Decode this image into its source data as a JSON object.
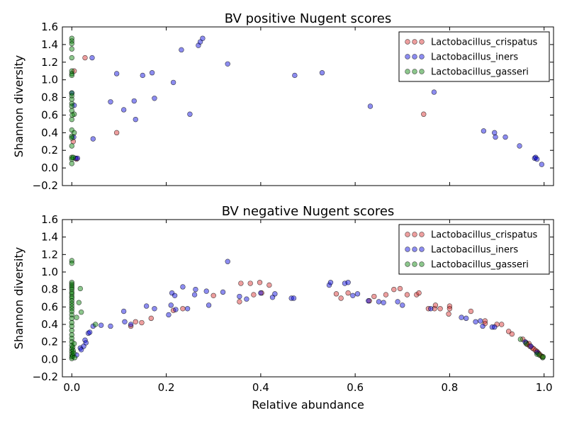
{
  "chart_data": [
    {
      "type": "scatter",
      "title": "BV positive Nugent scores",
      "xlabel": "",
      "ylabel": "Shannon diversity",
      "xlim": [
        -0.02,
        1.02
      ],
      "ylim": [
        -0.2,
        1.6
      ],
      "x_ticks": [],
      "y_ticks": [
        "−0.2",
        "0.0",
        "0.2",
        "0.4",
        "0.6",
        "0.8",
        "1.0",
        "1.2",
        "1.4",
        "1.6"
      ],
      "legend_position": "top-right",
      "series": [
        {
          "name": "Lactobacillus_crispatus",
          "color": "#d62728",
          "points": [
            [
              0.028,
              1.25
            ],
            [
              0.095,
              0.4
            ],
            [
              0.745,
              0.61
            ],
            [
              0.01,
              0.1
            ],
            [
              0.005,
              1.1
            ],
            [
              0.003,
              0.3
            ]
          ]
        },
        {
          "name": "Lactobacillus_iners",
          "color": "#0000dd",
          "points": [
            [
              0.043,
              1.25
            ],
            [
              0.045,
              0.33
            ],
            [
              0.082,
              0.75
            ],
            [
              0.095,
              1.07
            ],
            [
              0.11,
              0.66
            ],
            [
              0.132,
              0.76
            ],
            [
              0.135,
              0.55
            ],
            [
              0.15,
              1.05
            ],
            [
              0.17,
              1.08
            ],
            [
              0.175,
              0.79
            ],
            [
              0.215,
              0.97
            ],
            [
              0.232,
              1.34
            ],
            [
              0.25,
              0.61
            ],
            [
              0.268,
              1.39
            ],
            [
              0.272,
              1.43
            ],
            [
              0.277,
              1.47
            ],
            [
              0.33,
              1.18
            ],
            [
              0.472,
              1.05
            ],
            [
              0.53,
              1.08
            ],
            [
              0.632,
              0.7
            ],
            [
              0.767,
              0.86
            ],
            [
              0.872,
              0.42
            ],
            [
              0.895,
              0.4
            ],
            [
              0.897,
              0.35
            ],
            [
              0.918,
              0.35
            ],
            [
              0.948,
              0.25
            ],
            [
              0.98,
              0.11
            ],
            [
              0.982,
              0.12
            ],
            [
              0.985,
              0.1
            ],
            [
              0.995,
              0.04
            ],
            [
              0.0,
              0.85
            ],
            [
              0.005,
              0.71
            ],
            [
              0.008,
              0.11
            ],
            [
              0.012,
              0.11
            ],
            [
              0.004,
              0.35
            ]
          ]
        },
        {
          "name": "Lactobacillus_gasseri",
          "color": "#008000",
          "points": [
            [
              0.0,
              1.47
            ],
            [
              0.0,
              1.44
            ],
            [
              0.0,
              1.41
            ],
            [
              0.0,
              1.35
            ],
            [
              0.0,
              1.25
            ],
            [
              0.0,
              1.1
            ],
            [
              0.0,
              1.07
            ],
            [
              0.0,
              1.05
            ],
            [
              0.0,
              0.85
            ],
            [
              0.0,
              0.82
            ],
            [
              0.0,
              0.78
            ],
            [
              0.0,
              0.73
            ],
            [
              0.0,
              0.7
            ],
            [
              0.0,
              0.65
            ],
            [
              0.0,
              0.55
            ],
            [
              0.0,
              0.43
            ],
            [
              0.0,
              0.36
            ],
            [
              0.0,
              0.34
            ],
            [
              0.0,
              0.25
            ],
            [
              0.0,
              0.12
            ],
            [
              0.0,
              0.1
            ],
            [
              0.0,
              0.05
            ],
            [
              0.005,
              0.61
            ],
            [
              0.005,
              0.4
            ],
            [
              0.003,
              0.12
            ],
            [
              0.001,
              0.6
            ]
          ]
        }
      ]
    },
    {
      "type": "scatter",
      "title": "BV negative Nugent scores",
      "xlabel": "Relative abundance",
      "ylabel": "Shannon diversity",
      "xlim": [
        -0.02,
        1.02
      ],
      "ylim": [
        -0.2,
        1.6
      ],
      "x_ticks": [
        "0.0",
        "0.2",
        "0.4",
        "0.6",
        "0.8",
        "1.0"
      ],
      "y_ticks": [
        "−0.2",
        "0.0",
        "0.2",
        "0.4",
        "0.6",
        "0.8",
        "1.0",
        "1.2",
        "1.4",
        "1.6"
      ],
      "legend_position": "top-right",
      "series": [
        {
          "name": "Lactobacillus_crispatus",
          "color": "#d62728",
          "points": [
            [
              0.125,
              0.38
            ],
            [
              0.135,
              0.43
            ],
            [
              0.148,
              0.42
            ],
            [
              0.168,
              0.47
            ],
            [
              0.215,
              0.56
            ],
            [
              0.235,
              0.58
            ],
            [
              0.3,
              0.73
            ],
            [
              0.355,
              0.66
            ],
            [
              0.358,
              0.87
            ],
            [
              0.378,
              0.87
            ],
            [
              0.385,
              0.74
            ],
            [
              0.398,
              0.88
            ],
            [
              0.402,
              0.76
            ],
            [
              0.418,
              0.85
            ],
            [
              0.56,
              0.75
            ],
            [
              0.57,
              0.7
            ],
            [
              0.585,
              0.76
            ],
            [
              0.63,
              0.67
            ],
            [
              0.64,
              0.72
            ],
            [
              0.665,
              0.74
            ],
            [
              0.682,
              0.8
            ],
            [
              0.695,
              0.81
            ],
            [
              0.71,
              0.74
            ],
            [
              0.73,
              0.74
            ],
            [
              0.735,
              0.76
            ],
            [
              0.755,
              0.58
            ],
            [
              0.768,
              0.58
            ],
            [
              0.77,
              0.62
            ],
            [
              0.78,
              0.58
            ],
            [
              0.8,
              0.61
            ],
            [
              0.8,
              0.58
            ],
            [
              0.798,
              0.52
            ],
            [
              0.845,
              0.55
            ],
            [
              0.875,
              0.44
            ],
            [
              0.875,
              0.41
            ],
            [
              0.9,
              0.4
            ],
            [
              0.91,
              0.4
            ],
            [
              0.925,
              0.32
            ],
            [
              0.932,
              0.29
            ],
            [
              0.955,
              0.23
            ],
            [
              0.962,
              0.19
            ],
            [
              0.965,
              0.17
            ],
            [
              0.968,
              0.18
            ],
            [
              0.97,
              0.15
            ],
            [
              0.975,
              0.13
            ],
            [
              0.978,
              0.12
            ],
            [
              0.982,
              0.1
            ],
            [
              0.985,
              0.09
            ],
            [
              0.988,
              0.07
            ],
            [
              0.99,
              0.06
            ],
            [
              0.994,
              0.04
            ],
            [
              0.996,
              0.03
            ]
          ]
        },
        {
          "name": "Lactobacillus_iners",
          "color": "#0000dd",
          "points": [
            [
              0.01,
              0.05
            ],
            [
              0.018,
              0.13
            ],
            [
              0.02,
              0.11
            ],
            [
              0.025,
              0.15
            ],
            [
              0.028,
              0.22
            ],
            [
              0.03,
              0.19
            ],
            [
              0.035,
              0.3
            ],
            [
              0.038,
              0.31
            ],
            [
              0.045,
              0.38
            ],
            [
              0.062,
              0.39
            ],
            [
              0.082,
              0.38
            ],
            [
              0.11,
              0.55
            ],
            [
              0.112,
              0.43
            ],
            [
              0.125,
              0.4
            ],
            [
              0.158,
              0.61
            ],
            [
              0.175,
              0.58
            ],
            [
              0.205,
              0.51
            ],
            [
              0.21,
              0.62
            ],
            [
              0.212,
              0.76
            ],
            [
              0.218,
              0.73
            ],
            [
              0.22,
              0.57
            ],
            [
              0.235,
              0.83
            ],
            [
              0.245,
              0.58
            ],
            [
              0.26,
              0.74
            ],
            [
              0.262,
              0.8
            ],
            [
              0.285,
              0.78
            ],
            [
              0.29,
              0.62
            ],
            [
              0.32,
              0.77
            ],
            [
              0.33,
              1.12
            ],
            [
              0.355,
              0.72
            ],
            [
              0.37,
              0.69
            ],
            [
              0.4,
              0.76
            ],
            [
              0.425,
              0.71
            ],
            [
              0.43,
              0.75
            ],
            [
              0.465,
              0.7
            ],
            [
              0.47,
              0.7
            ],
            [
              0.545,
              0.85
            ],
            [
              0.548,
              0.88
            ],
            [
              0.578,
              0.87
            ],
            [
              0.585,
              0.88
            ],
            [
              0.595,
              0.73
            ],
            [
              0.605,
              0.75
            ],
            [
              0.628,
              0.67
            ],
            [
              0.65,
              0.66
            ],
            [
              0.66,
              0.65
            ],
            [
              0.69,
              0.66
            ],
            [
              0.7,
              0.62
            ],
            [
              0.76,
              0.58
            ],
            [
              0.825,
              0.48
            ],
            [
              0.835,
              0.47
            ],
            [
              0.855,
              0.43
            ],
            [
              0.865,
              0.44
            ],
            [
              0.87,
              0.38
            ],
            [
              0.89,
              0.37
            ],
            [
              0.895,
              0.37
            ],
            [
              0.96,
              0.2
            ],
            [
              0.972,
              0.15
            ],
            [
              0.985,
              0.08
            ]
          ]
        },
        {
          "name": "Lactobacillus_gasseri",
          "color": "#008000",
          "points": [
            [
              0.0,
              1.13
            ],
            [
              0.0,
              1.1
            ],
            [
              0.0,
              0.88
            ],
            [
              0.0,
              0.86
            ],
            [
              0.0,
              0.84
            ],
            [
              0.0,
              0.82
            ],
            [
              0.0,
              0.8
            ],
            [
              0.0,
              0.77
            ],
            [
              0.0,
              0.75
            ],
            [
              0.0,
              0.72
            ],
            [
              0.0,
              0.7
            ],
            [
              0.0,
              0.67
            ],
            [
              0.0,
              0.64
            ],
            [
              0.0,
              0.61
            ],
            [
              0.0,
              0.58
            ],
            [
              0.0,
              0.55
            ],
            [
              0.0,
              0.51
            ],
            [
              0.0,
              0.47
            ],
            [
              0.0,
              0.42
            ],
            [
              0.0,
              0.38
            ],
            [
              0.0,
              0.33
            ],
            [
              0.0,
              0.28
            ],
            [
              0.0,
              0.24
            ],
            [
              0.0,
              0.2
            ],
            [
              0.0,
              0.16
            ],
            [
              0.0,
              0.12
            ],
            [
              0.0,
              0.09
            ],
            [
              0.0,
              0.06
            ],
            [
              0.0,
              0.03
            ],
            [
              0.0,
              0.01
            ],
            [
              0.002,
              0.14
            ],
            [
              0.002,
              0.04
            ],
            [
              0.003,
              0.1
            ],
            [
              0.004,
              0.07
            ],
            [
              0.005,
              0.18
            ],
            [
              0.006,
              0.02
            ],
            [
              0.01,
              0.48
            ],
            [
              0.015,
              0.65
            ],
            [
              0.018,
              0.81
            ],
            [
              0.02,
              0.54
            ],
            [
              0.05,
              0.4
            ],
            [
              0.95,
              0.23
            ],
            [
              0.962,
              0.18
            ],
            [
              0.985,
              0.06
            ],
            [
              0.99,
              0.05
            ],
            [
              0.997,
              0.02
            ],
            [
              0.998,
              0.03
            ]
          ]
        }
      ]
    }
  ]
}
